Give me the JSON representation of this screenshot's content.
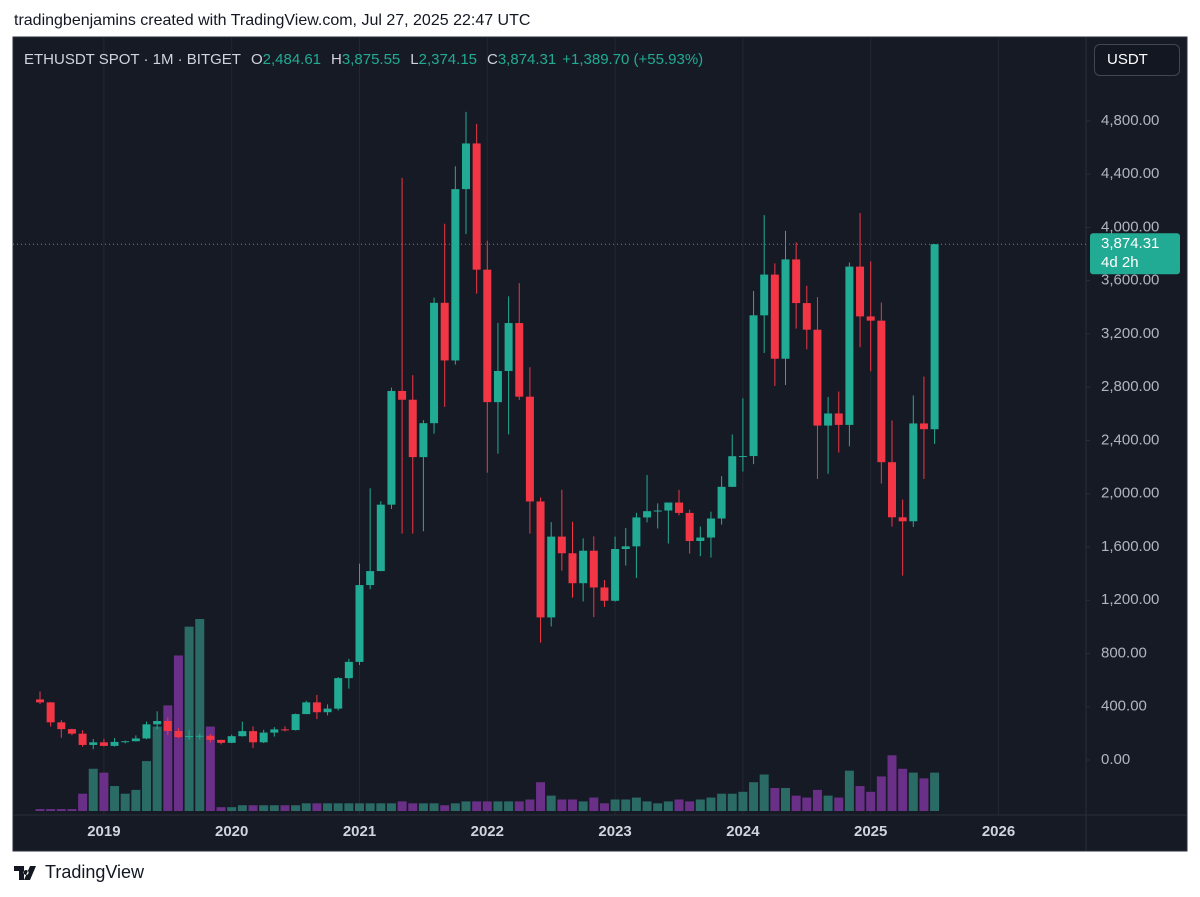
{
  "header": {
    "caption": "tradingbenjamins created with TradingView.com, Jul 27, 2025 22:47 UTC",
    "symbol": "ETHUSDT SPOT · 1M · BITGET",
    "ohlc_legend": [
      {
        "key": "O",
        "value": "2,484.61"
      },
      {
        "key": "H",
        "value": "3,875.55"
      },
      {
        "key": "L",
        "value": "2,374.15"
      },
      {
        "key": "C",
        "value": "3,874.31"
      }
    ],
    "change": "+1,389.70 (+55.93%)",
    "currency_button": "USDT"
  },
  "footer": {
    "brand": "TradingView"
  },
  "chart_data": {
    "type": "candlestick",
    "categories": [
      null,
      null,
      null,
      null,
      null,
      null,
      "2019",
      null,
      null,
      null,
      null,
      null,
      null,
      null,
      null,
      null,
      null,
      null,
      "2020",
      null,
      null,
      null,
      null,
      null,
      null,
      null,
      null,
      null,
      null,
      null,
      "2021",
      null,
      null,
      null,
      null,
      null,
      null,
      null,
      null,
      null,
      null,
      null,
      "2022",
      null,
      null,
      null,
      null,
      null,
      null,
      null,
      null,
      null,
      null,
      null,
      "2023",
      null,
      null,
      null,
      null,
      null,
      null,
      null,
      null,
      null,
      null,
      null,
      "2024",
      null,
      null,
      null,
      null,
      null,
      null,
      null,
      null,
      null,
      null,
      null,
      "2025",
      null,
      null,
      null,
      null,
      null,
      null,
      null,
      null,
      null,
      null,
      null,
      "2026"
    ],
    "open": [
      455,
      433,
      283,
      232,
      198,
      113,
      133,
      106,
      136,
      141,
      162,
      268,
      293,
      218,
      172,
      180,
      182,
      151,
      129,
      179,
      217,
      133,
      206,
      230,
      225,
      345,
      433,
      359,
      386,
      615,
      737,
      1314,
      1419,
      1918,
      2772,
      2706,
      2275,
      2530,
      3434,
      3001,
      4288,
      4631,
      3683,
      2688,
      2922,
      3282,
      2729,
      1942,
      1071,
      1678,
      1553,
      1328,
      1572,
      1296,
      1196,
      1585,
      1605,
      1822,
      1869,
      1874,
      1934,
      1856,
      1645,
      1671,
      1814,
      2052,
      2282,
      2283,
      3340,
      3646,
      3014,
      3760,
      3432,
      3232,
      2512,
      2603,
      2517,
      3706,
      3332,
      3300,
      2237,
      1823,
      1793,
      2528,
      2484.61,
      null,
      null,
      null,
      null,
      null,
      null
    ],
    "high": [
      515,
      436,
      300,
      235,
      224,
      158,
      160,
      165,
      146,
      185,
      288,
      366,
      320,
      240,
      224,
      199,
      195,
      153,
      191,
      288,
      253,
      227,
      247,
      253,
      349,
      445,
      489,
      418,
      623,
      760,
      1475,
      2041,
      1944,
      2797,
      4372,
      2891,
      2553,
      3473,
      4028,
      4460,
      4868,
      4778,
      3900,
      3283,
      3482,
      3582,
      2950,
      1973,
      1787,
      2030,
      1790,
      1665,
      1680,
      1352,
      1678,
      1742,
      1857,
      2141,
      1928,
      1930,
      2029,
      1880,
      1754,
      1865,
      2132,
      2445,
      2717,
      3523,
      4093,
      3730,
      3975,
      3888,
      3562,
      3477,
      2727,
      2768,
      3737,
      4109,
      3745,
      3436,
      2550,
      1956,
      2738,
      2880,
      3875.55,
      null,
      null,
      null,
      null,
      null,
      null
    ],
    "low": [
      420,
      251,
      167,
      186,
      100,
      81,
      102,
      101,
      125,
      140,
      157,
      230,
      187,
      165,
      152,
      156,
      132,
      117,
      127,
      176,
      90,
      127,
      176,
      215,
      222,
      345,
      307,
      335,
      372,
      536,
      714,
      1282,
      1453,
      1885,
      1700,
      1700,
      1718,
      2451,
      2652,
      2970,
      3950,
      3503,
      2159,
      2300,
      2446,
      2705,
      1700,
      881,
      1003,
      1422,
      1220,
      1191,
      1073,
      1150,
      1190,
      1461,
      1368,
      1785,
      1739,
      1626,
      1838,
      1550,
      1531,
      1521,
      1768,
      2050,
      2167,
      2222,
      3057,
      2810,
      2817,
      3240,
      3085,
      2111,
      2150,
      2310,
      2357,
      3100,
      2920,
      2076,
      1754,
      1385,
      1751,
      2111,
      2374.15,
      null,
      null,
      null,
      null,
      null,
      null
    ],
    "close": [
      433,
      283,
      232,
      198,
      113,
      133,
      106,
      136,
      141,
      162,
      268,
      293,
      218,
      172,
      180,
      182,
      151,
      129,
      179,
      217,
      133,
      206,
      230,
      225,
      345,
      433,
      359,
      386,
      615,
      737,
      1314,
      1419,
      1918,
      2772,
      2706,
      2275,
      2530,
      3434,
      3001,
      4288,
      4631,
      3683,
      2688,
      2922,
      3282,
      2729,
      1942,
      1071,
      1678,
      1553,
      1328,
      1572,
      1296,
      1196,
      1585,
      1605,
      1822,
      1869,
      1874,
      1934,
      1856,
      1645,
      1671,
      1814,
      2052,
      2282,
      2283,
      3340,
      3646,
      3014,
      3760,
      3432,
      3232,
      2512,
      2603,
      2517,
      3706,
      3332,
      3300,
      2237,
      1823,
      1793,
      2528,
      2485,
      3874.31,
      null,
      null,
      null,
      null,
      null,
      null
    ],
    "volume": [
      1,
      1,
      1,
      1,
      9,
      22,
      20,
      13,
      9,
      11,
      26,
      44,
      55,
      81,
      96,
      100,
      44,
      2,
      2,
      3,
      3,
      3,
      3,
      3,
      3,
      4,
      4,
      4,
      4,
      4,
      4,
      4,
      4,
      4,
      5,
      4,
      4,
      4,
      3,
      4,
      5,
      5,
      5,
      5,
      5,
      5,
      6,
      15,
      8,
      6,
      6,
      5,
      7,
      4,
      6,
      6,
      7,
      5,
      4,
      5,
      6,
      5,
      6,
      7,
      9,
      9,
      10,
      15,
      19,
      12,
      12,
      8,
      7,
      11,
      8,
      7,
      21,
      13,
      10,
      18,
      29,
      22,
      20,
      17,
      20,
      null,
      null,
      null,
      null,
      null,
      null
    ],
    "ylim": [
      -413,
      5423
    ],
    "volume_lim": [
      0,
      100
    ],
    "yticks": [
      {
        "value": 0,
        "label": "0.00"
      },
      {
        "value": 400,
        "label": "400.00"
      },
      {
        "value": 800,
        "label": "800.00"
      },
      {
        "value": 1200,
        "label": "1,200.00"
      },
      {
        "value": 1600,
        "label": "1,600.00"
      },
      {
        "value": 2000,
        "label": "2,000.00"
      },
      {
        "value": 2400,
        "label": "2,400.00"
      },
      {
        "value": 2800,
        "label": "2,800.00"
      },
      {
        "value": 3200,
        "label": "3,200.00"
      },
      {
        "value": 3600,
        "label": "3,600.00"
      },
      {
        "value": 4000,
        "label": "4,000.00"
      },
      {
        "value": 4400,
        "label": "4,400.00"
      },
      {
        "value": 4800,
        "label": "4,800.00"
      }
    ],
    "last_price": {
      "value": 3874.31,
      "label": "3,874.31"
    },
    "countdown": "4d 2h",
    "up_color": "#22ab94",
    "down_color": "#f23645",
    "up_volume_color": "#2a6b66",
    "down_volume_color": "#6a2f86",
    "grid": true
  }
}
